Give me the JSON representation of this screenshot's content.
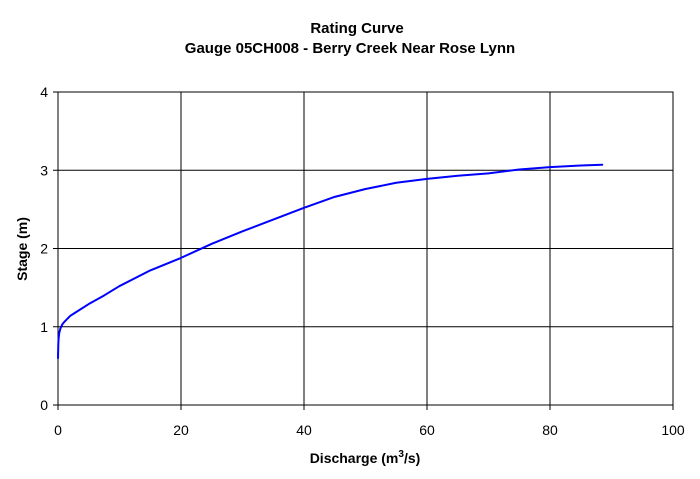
{
  "chart_data": {
    "type": "line",
    "title": "Rating Curve",
    "subtitle": "Gauge 05CH008 - Berry Creek Near Rose Lynn",
    "xlabel": {
      "prefix": "Discharge (m",
      "sup": "3",
      "suffix": "/s)"
    },
    "ylabel": "Stage (m)",
    "xlim": [
      0,
      100
    ],
    "ylim": [
      0,
      4
    ],
    "xticks": [
      "0",
      "20",
      "40",
      "60",
      "80",
      "100"
    ],
    "yticks": [
      "0",
      "1",
      "2",
      "3",
      "4"
    ],
    "grid": true,
    "legend": "none",
    "series_color": "#0000ff",
    "series": [
      {
        "x": [
          0.0,
          0.05,
          0.1,
          0.2,
          0.4,
          0.7,
          1.0,
          1.5,
          2.0,
          3.0,
          5.0,
          7.5,
          10.0,
          15.0,
          20.0,
          25.0,
          30.0,
          35.0,
          40.0,
          45.0,
          50.0,
          55.0,
          60.0,
          65.0,
          70.0,
          75.0,
          80.0,
          85.0,
          88.5
        ],
        "y": [
          0.6,
          0.78,
          0.85,
          0.92,
          0.98,
          1.03,
          1.06,
          1.1,
          1.14,
          1.19,
          1.29,
          1.4,
          1.52,
          1.72,
          1.88,
          2.06,
          2.22,
          2.37,
          2.52,
          2.66,
          2.76,
          2.84,
          2.89,
          2.93,
          2.96,
          3.01,
          3.04,
          3.06,
          3.07
        ]
      }
    ]
  }
}
